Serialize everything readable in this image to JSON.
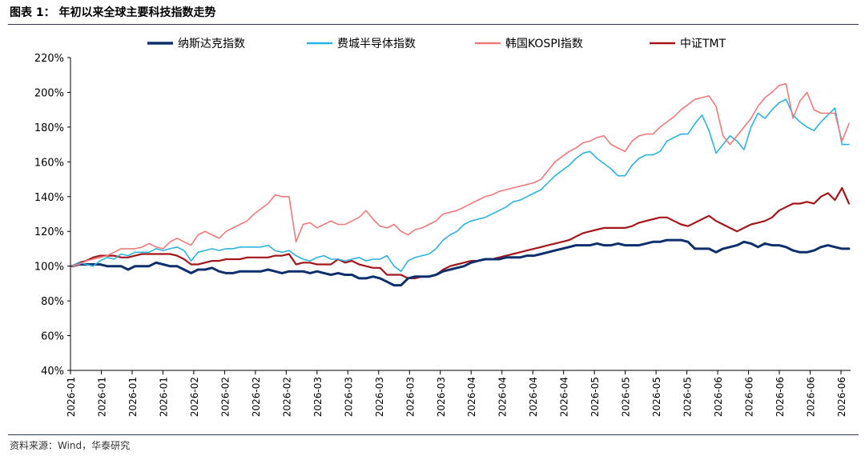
{
  "figure": {
    "title": "图表 1：  年初以来全球主要科技指数走势",
    "source": "资料来源：Wind，华泰研究"
  },
  "chart_data": {
    "type": "line",
    "title": "",
    "xlabel": "",
    "ylabel": "",
    "ylim": [
      40,
      220
    ],
    "y_unit": "%",
    "y_ticks": [
      40,
      60,
      80,
      100,
      120,
      140,
      160,
      180,
      200,
      220
    ],
    "y_tick_labels": [
      "40%",
      "60%",
      "80%",
      "100%",
      "120%",
      "140%",
      "160%",
      "180%",
      "200%",
      "220%"
    ],
    "x_tick_labels": [
      "2026-01",
      "2026-01",
      "2026-01",
      "2026-01",
      "2026-02",
      "2026-02",
      "2026-02",
      "2026-02",
      "2026-03",
      "2026-03",
      "2026-03",
      "2026-03",
      "2026-03",
      "2026-04",
      "2026-04",
      "2026-04",
      "2026-04",
      "2026-05",
      "2026-05",
      "2026-05",
      "2026-05",
      "2026-06",
      "2026-06",
      "2026-06",
      "2026-06",
      "2026-06"
    ],
    "grid": false,
    "legend_position": "top",
    "series": [
      {
        "name": "纳斯达克指数",
        "color": "#0d2f6e",
        "values": [
          100,
          101,
          101,
          101,
          101,
          100,
          100,
          100,
          98,
          100,
          100,
          100,
          102,
          101,
          100,
          100,
          98,
          96,
          98,
          98,
          99,
          97,
          96,
          96,
          97,
          97,
          97,
          97,
          98,
          97,
          96,
          97,
          97,
          97,
          96,
          97,
          96,
          95,
          96,
          95,
          95,
          93,
          93,
          94,
          93,
          91,
          89,
          89,
          93,
          94,
          94,
          94,
          95,
          97,
          98,
          99,
          100,
          102,
          103,
          104,
          104,
          104,
          105,
          105,
          105,
          106,
          106,
          107,
          108,
          109,
          110,
          111,
          112,
          112,
          112,
          113,
          112,
          112,
          113,
          112,
          112,
          112,
          113,
          114,
          114,
          115,
          115,
          115,
          114,
          110,
          110,
          110,
          108,
          110,
          111,
          112,
          114,
          113,
          111,
          113,
          112,
          112,
          111,
          109,
          108,
          108,
          109,
          111,
          112,
          111,
          110,
          110
        ]
      },
      {
        "name": "费城半导体指数",
        "color": "#2cb3e0",
        "values": [
          100,
          102,
          101,
          100,
          103,
          105,
          104,
          107,
          106,
          108,
          108,
          108,
          110,
          109,
          110,
          111,
          109,
          103,
          108,
          109,
          110,
          109,
          110,
          110,
          111,
          111,
          111,
          111,
          112,
          109,
          108,
          109,
          106,
          104,
          103,
          105,
          106,
          104,
          104,
          103,
          104,
          105,
          103,
          104,
          104,
          106,
          100,
          97,
          103,
          105,
          106,
          107,
          110,
          115,
          118,
          120,
          124,
          126,
          127,
          128,
          130,
          132,
          134,
          137,
          138,
          140,
          142,
          144,
          148,
          152,
          155,
          158,
          162,
          165,
          166,
          162,
          159,
          156,
          152,
          152,
          158,
          162,
          164,
          164,
          166,
          172,
          174,
          176,
          176,
          182,
          187,
          178,
          165,
          170,
          175,
          172,
          167,
          180,
          188,
          185,
          190,
          194,
          196,
          187,
          183,
          180,
          178,
          183,
          187,
          191,
          170,
          170
        ]
      },
      {
        "name": "韩国KOSPI指数",
        "color": "#f07a7a",
        "values": [
          100,
          101,
          103,
          104,
          105,
          106,
          108,
          110,
          110,
          110,
          111,
          113,
          111,
          110,
          114,
          116,
          114,
          112,
          118,
          120,
          118,
          116,
          120,
          122,
          124,
          126,
          130,
          133,
          136,
          141,
          140,
          140,
          114,
          124,
          125,
          122,
          124,
          126,
          124,
          124,
          126,
          128,
          132,
          127,
          123,
          122,
          124,
          120,
          118,
          121,
          122,
          124,
          126,
          130,
          131,
          132,
          134,
          136,
          138,
          140,
          141,
          143,
          144,
          145,
          146,
          147,
          148,
          150,
          155,
          160,
          163,
          166,
          168,
          171,
          172,
          174,
          175,
          170,
          168,
          166,
          172,
          175,
          176,
          176,
          180,
          183,
          186,
          190,
          193,
          196,
          197,
          198,
          192,
          175,
          170,
          175,
          180,
          185,
          192,
          197,
          200,
          204,
          205,
          185,
          195,
          200,
          190,
          188,
          188,
          188,
          172,
          182
        ]
      },
      {
        "name": "中证TMT",
        "color": "#a4161a",
        "values": [
          100,
          102,
          103,
          105,
          106,
          106,
          106,
          105,
          105,
          106,
          107,
          107,
          107,
          107,
          107,
          106,
          104,
          101,
          101,
          102,
          103,
          103,
          104,
          104,
          104,
          105,
          105,
          105,
          105,
          106,
          106,
          107,
          101,
          102,
          102,
          101,
          101,
          101,
          104,
          102,
          103,
          101,
          100,
          99,
          99,
          95,
          95,
          95,
          93,
          93,
          94,
          94,
          95,
          98,
          100,
          101,
          102,
          103,
          103,
          104,
          104,
          105,
          106,
          107,
          108,
          109,
          110,
          111,
          112,
          113,
          114,
          115,
          117,
          119,
          120,
          121,
          122,
          122,
          122,
          122,
          123,
          125,
          126,
          127,
          128,
          128,
          126,
          124,
          123,
          125,
          127,
          129,
          126,
          124,
          122,
          120,
          122,
          124,
          125,
          126,
          128,
          132,
          134,
          136,
          136,
          137,
          136,
          140,
          142,
          138,
          145,
          136
        ]
      }
    ]
  }
}
